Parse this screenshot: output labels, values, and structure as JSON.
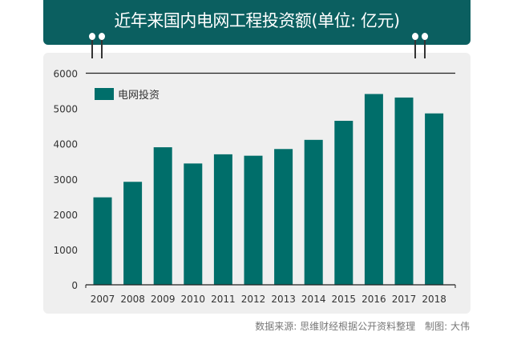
{
  "header": {
    "title": "近年来国内电网工程投资额(单位: 亿元)"
  },
  "footer": {
    "source": "数据来源: 思维财经根据公开资料整理　制图: 大伟"
  },
  "colors": {
    "header": "#0b5f60",
    "bar": "#006e6a",
    "panel": "#efefef"
  },
  "chart_data": {
    "type": "bar",
    "title": "近年来国内电网工程投资额(单位: 亿元)",
    "categories": [
      "2007",
      "2008",
      "2009",
      "2010",
      "2011",
      "2012",
      "2013",
      "2014",
      "2015",
      "2016",
      "2017",
      "2018"
    ],
    "series": [
      {
        "name": "电网投资",
        "values": [
          2480,
          2920,
          3900,
          3440,
          3700,
          3660,
          3850,
          4110,
          4650,
          5410,
          5310,
          4860
        ]
      }
    ],
    "yticks": [
      0,
      1000,
      2000,
      3000,
      4000,
      5000,
      6000
    ],
    "ylim": [
      0,
      6000
    ],
    "xlabel": "",
    "ylabel": "",
    "legend": "top-left",
    "grid": false
  }
}
